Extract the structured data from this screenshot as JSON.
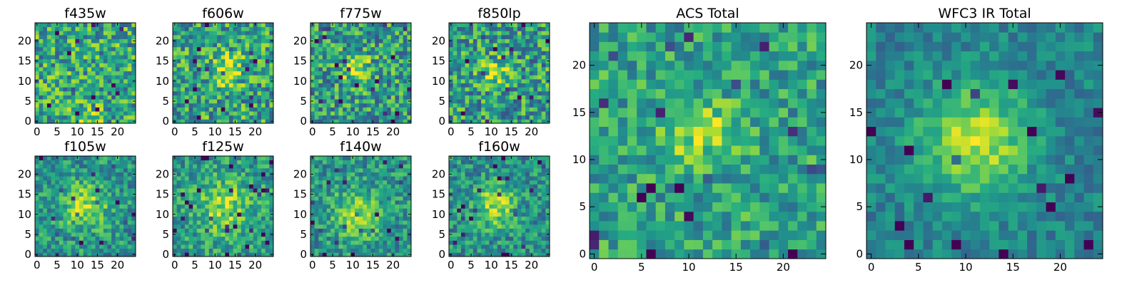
{
  "chart_data": [
    {
      "type": "heatmap",
      "title": "f435w",
      "colormap": "viridis",
      "xlim": [
        0,
        24
      ],
      "ylim": [
        0,
        24
      ],
      "xticks": [
        0,
        5,
        10,
        15,
        20
      ],
      "yticks": [
        0,
        5,
        10,
        15,
        20
      ],
      "blob": {
        "x": 12,
        "y": 0,
        "strength": 0.25,
        "sigma": 2.5
      },
      "noise": 0.3,
      "base": 0.6,
      "seed": 11
    },
    {
      "type": "heatmap",
      "title": "f606w",
      "colormap": "viridis",
      "xlim": [
        0,
        24
      ],
      "ylim": [
        0,
        24
      ],
      "xticks": [
        0,
        5,
        10,
        15,
        20
      ],
      "yticks": [
        0,
        5,
        10,
        15,
        20
      ],
      "blob": {
        "x": 13,
        "y": 13,
        "strength": 0.3,
        "sigma": 3
      },
      "noise": 0.3,
      "base": 0.58,
      "seed": 23
    },
    {
      "type": "heatmap",
      "title": "f775w",
      "colormap": "viridis",
      "xlim": [
        0,
        24
      ],
      "ylim": [
        0,
        24
      ],
      "xticks": [
        0,
        5,
        10,
        15,
        20
      ],
      "yticks": [
        0,
        5,
        10,
        15,
        20
      ],
      "blob": {
        "x": 11,
        "y": 13,
        "strength": 0.35,
        "sigma": 2.5
      },
      "noise": 0.3,
      "base": 0.55,
      "seed": 37
    },
    {
      "type": "heatmap",
      "title": "f850lp",
      "colormap": "viridis",
      "xlim": [
        0,
        24
      ],
      "ylim": [
        0,
        24
      ],
      "xticks": [
        0,
        5,
        10,
        15,
        20
      ],
      "yticks": [
        0,
        5,
        10,
        15,
        20
      ],
      "blob": {
        "x": 11,
        "y": 12,
        "strength": 0.3,
        "sigma": 2.5
      },
      "noise": 0.3,
      "base": 0.55,
      "seed": 41
    },
    {
      "type": "heatmap",
      "title": "f105w",
      "colormap": "viridis",
      "xlim": [
        0,
        24
      ],
      "ylim": [
        0,
        24
      ],
      "xticks": [
        0,
        5,
        10,
        15,
        20
      ],
      "yticks": [
        0,
        5,
        10,
        15,
        20
      ],
      "blob": {
        "x": 12,
        "y": 12,
        "strength": 0.35,
        "sigma": 4
      },
      "noise": 0.22,
      "base": 0.52,
      "seed": 53
    },
    {
      "type": "heatmap",
      "title": "f125w",
      "colormap": "viridis",
      "xlim": [
        0,
        24
      ],
      "ylim": [
        0,
        24
      ],
      "xticks": [
        0,
        5,
        10,
        15,
        20
      ],
      "yticks": [
        0,
        5,
        10,
        15,
        20
      ],
      "blob": {
        "x": 12,
        "y": 12,
        "strength": 0.3,
        "sigma": 4.5
      },
      "noise": 0.22,
      "base": 0.55,
      "seed": 67
    },
    {
      "type": "heatmap",
      "title": "f140w",
      "colormap": "viridis",
      "xlim": [
        0,
        24
      ],
      "ylim": [
        0,
        24
      ],
      "xticks": [
        0,
        5,
        10,
        15,
        20
      ],
      "yticks": [
        0,
        5,
        10,
        15,
        20
      ],
      "blob": {
        "x": 11,
        "y": 10,
        "strength": 0.35,
        "sigma": 4
      },
      "noise": 0.22,
      "base": 0.52,
      "seed": 79
    },
    {
      "type": "heatmap",
      "title": "f160w",
      "colormap": "viridis",
      "xlim": [
        0,
        24
      ],
      "ylim": [
        0,
        24
      ],
      "xticks": [
        0,
        5,
        10,
        15,
        20
      ],
      "yticks": [
        0,
        5,
        10,
        15,
        20
      ],
      "blob": {
        "x": 11,
        "y": 12,
        "strength": 0.4,
        "sigma": 3.5
      },
      "noise": 0.22,
      "base": 0.5,
      "seed": 97
    },
    {
      "type": "heatmap",
      "title": "ACS Total",
      "colormap": "viridis",
      "xlim": [
        0,
        24
      ],
      "ylim": [
        0,
        24
      ],
      "xticks": [
        0,
        5,
        10,
        15,
        20
      ],
      "yticks": [
        0,
        5,
        10,
        15,
        20
      ],
      "blob": {
        "x": 11,
        "y": 13,
        "strength": 0.3,
        "sigma": 2.5
      },
      "noise": 0.22,
      "base": 0.58,
      "seed": 101
    },
    {
      "type": "heatmap",
      "title": "WFC3 IR Total",
      "colormap": "viridis",
      "xlim": [
        0,
        24
      ],
      "ylim": [
        0,
        24
      ],
      "xticks": [
        0,
        5,
        10,
        15,
        20
      ],
      "yticks": [
        0,
        5,
        10,
        15,
        20
      ],
      "blob": {
        "x": 11,
        "y": 12,
        "strength": 0.45,
        "sigma": 4
      },
      "noise": 0.14,
      "base": 0.45,
      "seed": 131
    }
  ]
}
